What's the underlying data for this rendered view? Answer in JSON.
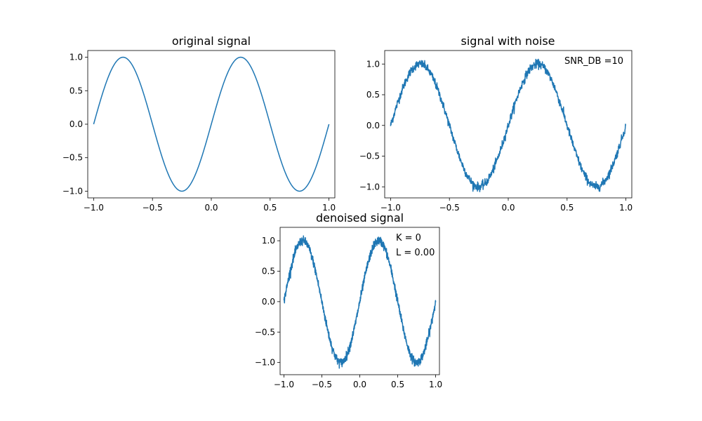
{
  "chart_data": [
    {
      "type": "line",
      "title": "original signal",
      "xlim": [
        -1.05,
        1.05
      ],
      "ylim": [
        -1.1,
        1.1
      ],
      "xticks": [
        -1.0,
        -0.5,
        0.0,
        0.5,
        1.0
      ],
      "xtick_labels": [
        "−1.0",
        "−0.5",
        "0.0",
        "0.5",
        "1.0"
      ],
      "yticks": [
        -1.0,
        -0.5,
        0.0,
        0.5,
        1.0
      ],
      "ytick_labels": [
        "−1.0",
        "−0.5",
        "0.0",
        "0.5",
        "1.0"
      ],
      "color": "#1f77b4",
      "series": [
        {
          "function": "sin(2*pi*x)",
          "x_range": [
            -1.0,
            1.0
          ],
          "noise_std": 0.0
        }
      ],
      "annotations": []
    },
    {
      "type": "line",
      "title": "signal with noise",
      "xlim": [
        -1.05,
        1.05
      ],
      "ylim": [
        -1.18,
        1.22
      ],
      "xticks": [
        -1.0,
        -0.5,
        0.0,
        0.5,
        1.0
      ],
      "xtick_labels": [
        "−1.0",
        "−0.5",
        "0.0",
        "0.5",
        "1.0"
      ],
      "yticks": [
        -1.0,
        -0.5,
        0.0,
        0.5,
        1.0
      ],
      "ytick_labels": [
        "−1.0",
        "−0.5",
        "0.0",
        "0.5",
        "1.0"
      ],
      "color": "#1f77b4",
      "series": [
        {
          "function": "sin(2*pi*x) + noise",
          "x_range": [
            -1.0,
            1.0
          ],
          "noise_std": 0.035
        }
      ],
      "annotations": [
        "SNR_DB =10"
      ]
    },
    {
      "type": "line",
      "title": "denoised signal",
      "xlim": [
        -1.05,
        1.05
      ],
      "ylim": [
        -1.2,
        1.22
      ],
      "xticks": [
        -1.0,
        -0.5,
        0.0,
        0.5,
        1.0
      ],
      "xtick_labels": [
        "−1.0",
        "−0.5",
        "0.0",
        "0.5",
        "1.0"
      ],
      "yticks": [
        -1.0,
        -0.5,
        0.0,
        0.5,
        1.0
      ],
      "ytick_labels": [
        "−1.0",
        "−0.5",
        "0.0",
        "0.5",
        "1.0"
      ],
      "color": "#1f77b4",
      "series": [
        {
          "function": "sin(2*pi*x) + noise",
          "x_range": [
            -1.0,
            1.0
          ],
          "noise_std": 0.035
        }
      ],
      "annotations": [
        "K = 0",
        "L = 0.00"
      ]
    }
  ]
}
